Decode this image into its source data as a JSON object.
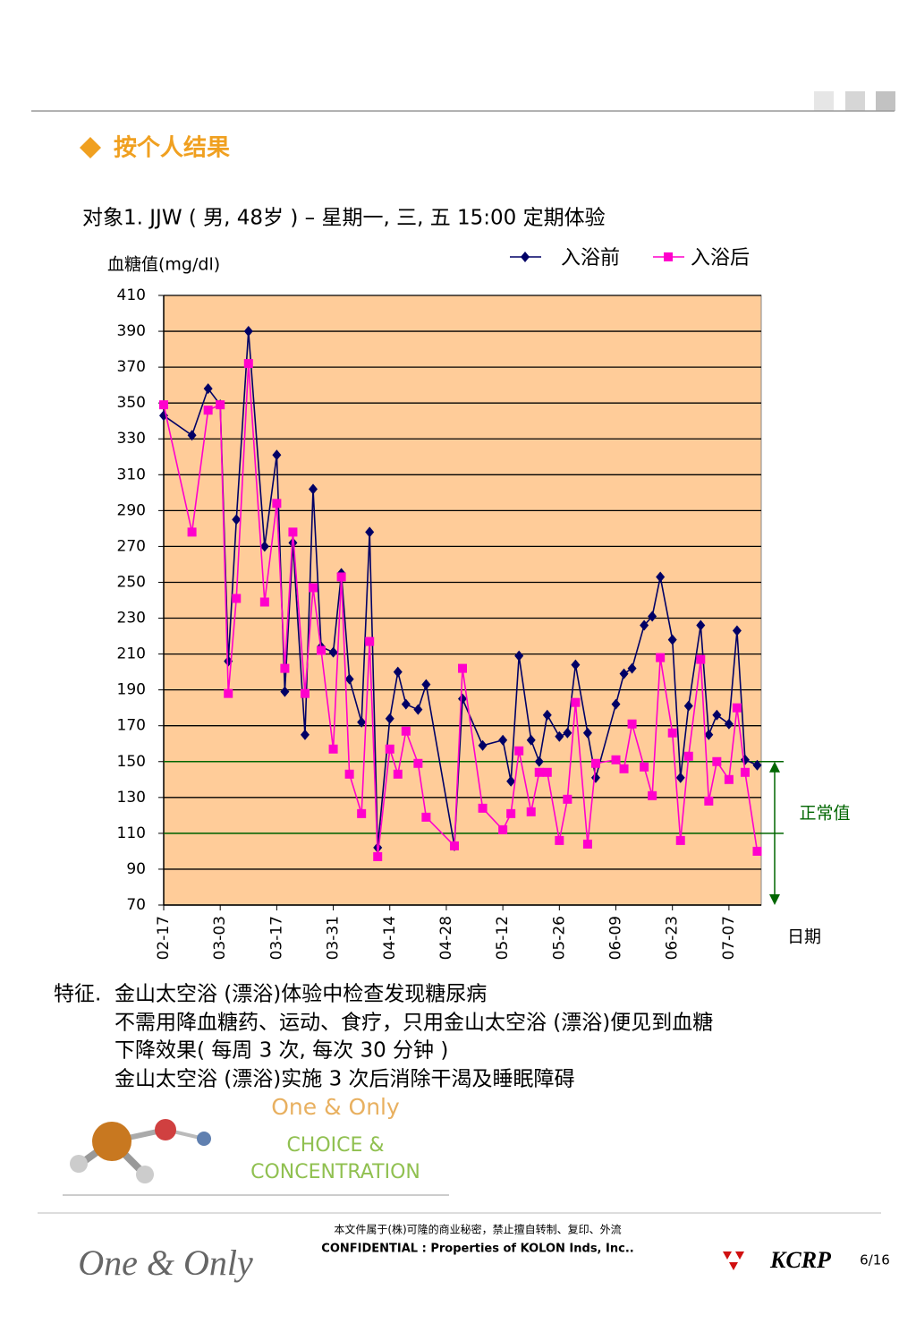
{
  "header": {
    "title": "按个人结果"
  },
  "chart_data": {
    "type": "line",
    "title": "对象1. JJW ( 男, 48岁 ) – 星期一, 三, 五 15:00 定期体验",
    "y_label": "血糖值(mg/dl)",
    "x_label": "日期",
    "x": [
      "02-17",
      "02-24",
      "02-28",
      "03-03",
      "03-05",
      "03-07",
      "03-10",
      "03-14",
      "03-17",
      "03-19",
      "03-21",
      "03-24",
      "03-26",
      "03-28",
      "03-31",
      "04-02",
      "04-04",
      "04-07",
      "04-09",
      "04-11",
      "04-14",
      "04-16",
      "04-18",
      "04-21",
      "04-23",
      "04-30",
      "05-02",
      "05-07",
      "05-12",
      "05-14",
      "05-16",
      "05-19",
      "05-21",
      "05-23",
      "05-26",
      "05-28",
      "05-30",
      "06-02",
      "06-04",
      "06-09",
      "06-11",
      "06-13",
      "06-16",
      "06-18",
      "06-20",
      "06-23",
      "06-25",
      "06-27",
      "06-30",
      "07-02",
      "07-04",
      "07-07",
      "07-09",
      "07-11",
      "07-14"
    ],
    "series": [
      {
        "name": "入浴前",
        "color": "#000066",
        "marker": "diamond",
        "values": [
          343,
          332,
          358,
          349,
          206,
          285,
          390,
          270,
          321,
          189,
          272,
          165,
          302,
          214,
          211,
          255,
          196,
          172,
          278,
          102,
          174,
          200,
          182,
          179,
          193,
          103,
          185,
          159,
          162,
          139,
          209,
          162,
          150,
          176,
          164,
          166,
          204,
          166,
          141,
          182,
          199,
          202,
          226,
          231,
          253,
          218,
          141,
          181,
          226,
          165,
          176,
          171,
          223,
          151,
          148
        ]
      },
      {
        "name": "入浴后",
        "color": "#ff00cc",
        "marker": "square",
        "values": [
          349,
          278,
          346,
          349,
          188,
          241,
          372,
          239,
          294,
          202,
          278,
          188,
          247,
          212,
          157,
          253,
          143,
          121,
          217,
          97,
          157,
          143,
          167,
          149,
          119,
          103,
          202,
          124,
          112,
          121,
          156,
          122,
          144,
          144,
          106,
          129,
          183,
          104,
          149,
          151,
          146,
          171,
          147,
          131,
          208,
          166,
          106,
          153,
          207,
          128,
          150,
          140,
          180,
          144,
          100
        ]
      }
    ],
    "xlim": [
      "02-17",
      "07-15"
    ],
    "xticks": [
      "02-17",
      "03-03",
      "03-17",
      "03-31",
      "04-14",
      "04-28",
      "05-12",
      "05-26",
      "06-09",
      "06-23",
      "07-07"
    ],
    "ylim": [
      70,
      410
    ],
    "yticks": [
      70,
      90,
      110,
      130,
      150,
      170,
      190,
      210,
      230,
      250,
      270,
      290,
      310,
      330,
      350,
      370,
      390,
      410
    ],
    "grid": true,
    "background": "#ffcc99",
    "annotation": {
      "text": "正常值",
      "range": [
        110,
        150
      ],
      "color": "#006600"
    }
  },
  "notes": {
    "label": "特征.",
    "lines": [
      "金山太空浴 (漂浴)体验中检查发现糖尿病",
      "不需用降血糖药、运动、食疗，只用金山太空浴 (漂浴)便见到血糖",
      "下降效果( 每周 3 次, 每次 30 分钟 )",
      "金山太空浴 (漂浴)实施 3 次后消除干渴及睡眠障碍"
    ]
  },
  "logo": {
    "line1": "One & Only",
    "line2": "CHOICE &",
    "line3": "CONCENTRATION"
  },
  "footer": {
    "notice": "本文件属于(株)可隆的商业秘密，禁止擅自转制、复印、外流",
    "confidential": "CONFIDENTIAL : Properties of KOLON Inds, Inc..",
    "brand": "One & Only",
    "company": "KCRP",
    "page": "6/16"
  }
}
